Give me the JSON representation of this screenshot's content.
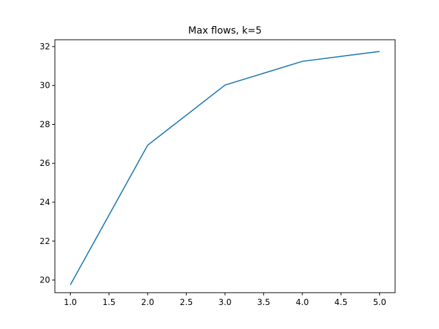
{
  "chart_data": {
    "type": "line",
    "title": "Max flows, k=5",
    "xlabel": "",
    "ylabel": "",
    "xlim": [
      0.8,
      5.2
    ],
    "ylim": [
      19.35,
      32.35
    ],
    "x_ticks": [
      1.0,
      1.5,
      2.0,
      2.5,
      3.0,
      3.5,
      4.0,
      4.5,
      5.0
    ],
    "x_tick_labels": [
      "1.0",
      "1.5",
      "2.0",
      "2.5",
      "3.0",
      "3.5",
      "4.0",
      "4.5",
      "5.0"
    ],
    "y_ticks": [
      20,
      22,
      24,
      26,
      28,
      30,
      32
    ],
    "y_tick_labels": [
      "20",
      "22",
      "24",
      "26",
      "28",
      "30",
      "32"
    ],
    "grid": false,
    "series": [
      {
        "x": [
          1,
          2,
          3,
          4,
          5
        ],
        "values": [
          19.75,
          26.93,
          30.02,
          31.24,
          31.75
        ],
        "color": "#1f77b4"
      }
    ]
  }
}
